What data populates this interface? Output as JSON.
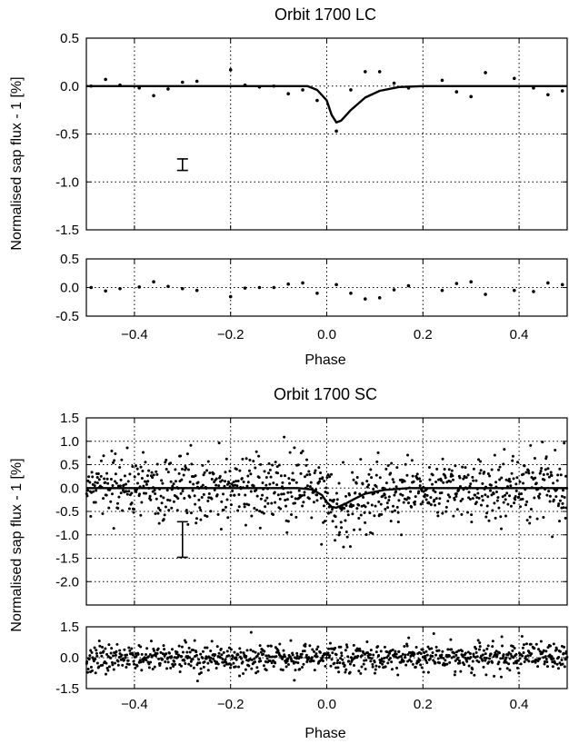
{
  "chart_data": [
    {
      "title": "Orbit 1700 LC",
      "type": "scatter",
      "ylabel": "Normalised sap flux - 1 [%]",
      "xlabel": "",
      "xlim": [
        -0.5,
        0.5
      ],
      "main": {
        "ylim": [
          -1.5,
          0.5
        ],
        "yticks": [
          "0.5",
          "0.0",
          "-0.5",
          "-1.0",
          "-1.5"
        ],
        "yticks_values": [
          0.5,
          0.0,
          -0.5,
          -1.0,
          -1.5
        ],
        "errorbar": {
          "x": -0.3,
          "y": -0.82,
          "err": 0.06
        },
        "points": [
          [
            -0.49,
            0.0
          ],
          [
            -0.46,
            0.07
          ],
          [
            -0.43,
            0.01
          ],
          [
            -0.39,
            -0.02
          ],
          [
            -0.36,
            -0.1
          ],
          [
            -0.33,
            -0.03
          ],
          [
            -0.3,
            0.04
          ],
          [
            -0.27,
            0.05
          ],
          [
            -0.2,
            0.17
          ],
          [
            -0.17,
            0.01
          ],
          [
            -0.14,
            -0.01
          ],
          [
            -0.11,
            0.0
          ],
          [
            -0.08,
            -0.08
          ],
          [
            -0.05,
            -0.04
          ],
          [
            -0.02,
            -0.15
          ],
          [
            0.02,
            -0.47
          ],
          [
            0.05,
            -0.04
          ],
          [
            0.08,
            0.15
          ],
          [
            0.11,
            0.15
          ],
          [
            0.14,
            0.03
          ],
          [
            0.17,
            -0.02
          ],
          [
            0.24,
            0.06
          ],
          [
            0.27,
            -0.06
          ],
          [
            0.3,
            -0.11
          ],
          [
            0.33,
            0.14
          ],
          [
            0.39,
            0.08
          ],
          [
            0.43,
            -0.02
          ],
          [
            0.46,
            -0.09
          ],
          [
            0.49,
            -0.05
          ]
        ],
        "model": [
          [
            -0.5,
            0.0
          ],
          [
            -0.06,
            0.0
          ],
          [
            -0.04,
            0.0
          ],
          [
            -0.02,
            -0.04
          ],
          [
            0.0,
            -0.15
          ],
          [
            0.01,
            -0.3
          ],
          [
            0.02,
            -0.38
          ],
          [
            0.03,
            -0.36
          ],
          [
            0.05,
            -0.25
          ],
          [
            0.08,
            -0.12
          ],
          [
            0.11,
            -0.05
          ],
          [
            0.15,
            -0.01
          ],
          [
            0.2,
            0.0
          ],
          [
            0.5,
            0.0
          ]
        ]
      },
      "resid": {
        "ylim": [
          -0.5,
          0.5
        ],
        "yticks": [
          "0.5",
          "0.0",
          "-0.5"
        ],
        "yticks_values": [
          0.5,
          0.0,
          -0.5
        ],
        "points": [
          [
            -0.49,
            0.0
          ],
          [
            -0.46,
            -0.06
          ],
          [
            -0.43,
            -0.02
          ],
          [
            -0.39,
            0.01
          ],
          [
            -0.36,
            0.1
          ],
          [
            -0.33,
            0.02
          ],
          [
            -0.3,
            -0.02
          ],
          [
            -0.27,
            -0.05
          ],
          [
            -0.2,
            -0.16
          ],
          [
            -0.17,
            -0.01
          ],
          [
            -0.14,
            0.0
          ],
          [
            -0.11,
            0.0
          ],
          [
            -0.08,
            0.06
          ],
          [
            -0.05,
            0.08
          ],
          [
            -0.02,
            -0.1
          ],
          [
            0.02,
            0.05
          ],
          [
            0.05,
            -0.1
          ],
          [
            0.08,
            -0.2
          ],
          [
            0.11,
            -0.18
          ],
          [
            0.14,
            -0.04
          ],
          [
            0.17,
            0.03
          ],
          [
            0.24,
            -0.05
          ],
          [
            0.27,
            0.07
          ],
          [
            0.3,
            0.1
          ],
          [
            0.33,
            -0.12
          ],
          [
            0.39,
            -0.05
          ],
          [
            0.43,
            -0.07
          ],
          [
            0.46,
            0.08
          ],
          [
            0.49,
            0.05
          ]
        ]
      },
      "xticks": [
        "−0.4",
        "−0.2",
        "0.0",
        "0.2",
        "0.4"
      ],
      "xticks_values": [
        -0.4,
        -0.2,
        0.0,
        0.2,
        0.4
      ],
      "phase_label": "Phase"
    },
    {
      "title": "Orbit 1700 SC",
      "type": "scatter",
      "ylabel": "Normalised sap flux - 1 [%]",
      "xlabel": "Phase",
      "xlim": [
        -0.5,
        0.5
      ],
      "main": {
        "ylim": [
          -2.5,
          1.5
        ],
        "yticks": [
          "1.5",
          "1.0",
          "0.5",
          "0.0",
          "-0.5",
          "-1.0",
          "-1.5",
          "-2.0"
        ],
        "yticks_values": [
          1.5,
          1.0,
          0.5,
          0.0,
          -0.5,
          -1.0,
          -1.5,
          -2.0
        ],
        "errorbar": {
          "x": -0.3,
          "y": -1.1,
          "err": 0.38
        },
        "noise_sigma": 0.35,
        "n_points": 900,
        "model": [
          [
            -0.5,
            0.0
          ],
          [
            -0.06,
            0.0
          ],
          [
            -0.03,
            -0.03
          ],
          [
            -0.01,
            -0.15
          ],
          [
            0.0,
            -0.3
          ],
          [
            0.01,
            -0.4
          ],
          [
            0.02,
            -0.42
          ],
          [
            0.04,
            -0.33
          ],
          [
            0.06,
            -0.22
          ],
          [
            0.08,
            -0.12
          ],
          [
            0.12,
            -0.04
          ],
          [
            0.17,
            0.0
          ],
          [
            0.5,
            0.0
          ]
        ]
      },
      "resid": {
        "ylim": [
          -1.5,
          1.5
        ],
        "yticks": [
          "1.5",
          "0.0",
          "-1.5"
        ],
        "yticks_values": [
          1.5,
          0.0,
          -1.5
        ],
        "noise_sigma": 0.35,
        "n_points": 900
      },
      "xticks": [
        "−0.4",
        "−0.2",
        "0.0",
        "0.2",
        "0.4"
      ],
      "xticks_values": [
        -0.4,
        -0.2,
        0.0,
        0.2,
        0.4
      ],
      "phase_label": "Phase"
    }
  ]
}
